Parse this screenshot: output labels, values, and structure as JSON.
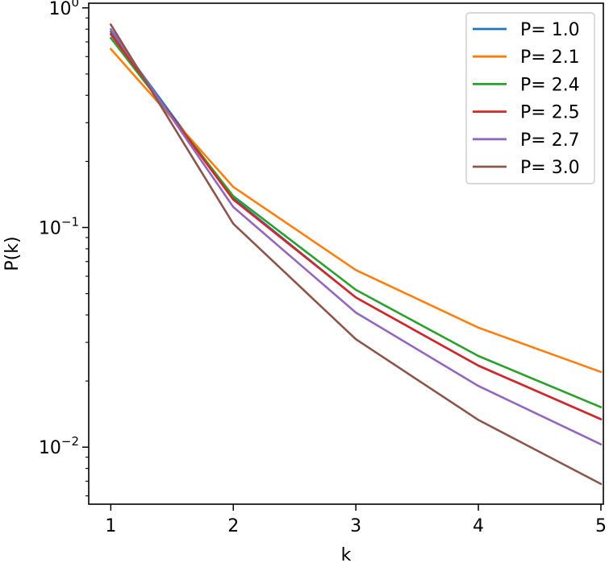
{
  "chart_data": {
    "type": "line",
    "xlabel": "k",
    "ylabel": "P(k)",
    "x": [
      1,
      2,
      3,
      4,
      5
    ],
    "xlim": [
      0.82,
      5.02
    ],
    "ylim": [
      0.0055,
      1.05
    ],
    "yscale": "log",
    "x_ticks": [
      "1",
      "2",
      "3",
      "4",
      "5"
    ],
    "y_ticks": [
      {
        "value": 1,
        "base": "10",
        "exp": "0"
      },
      {
        "value": 0.1,
        "base": "10",
        "exp": "−1"
      },
      {
        "value": 0.01,
        "base": "10",
        "exp": "−2"
      }
    ],
    "grid": false,
    "legend_position": "top-right",
    "series": [
      {
        "name": "P= 1.0",
        "color": "#1f77b4",
        "values": [
          0.78,
          0.136,
          0.048,
          0.0235,
          0.0134
        ]
      },
      {
        "name": "P= 2.1",
        "color": "#ff7f0e",
        "values": [
          0.65,
          0.153,
          0.064,
          0.035,
          0.022
        ]
      },
      {
        "name": "P= 2.4",
        "color": "#2ca02c",
        "values": [
          0.73,
          0.139,
          0.052,
          0.026,
          0.0152
        ]
      },
      {
        "name": "P= 2.5",
        "color": "#d62728",
        "values": [
          0.76,
          0.134,
          0.048,
          0.0235,
          0.0134
        ]
      },
      {
        "name": "P= 2.7",
        "color": "#9467bd",
        "values": [
          0.8,
          0.124,
          0.041,
          0.019,
          0.0103
        ]
      },
      {
        "name": "P= 3.0",
        "color": "#8c564b",
        "values": [
          0.84,
          0.104,
          0.031,
          0.0133,
          0.0068
        ]
      }
    ]
  }
}
